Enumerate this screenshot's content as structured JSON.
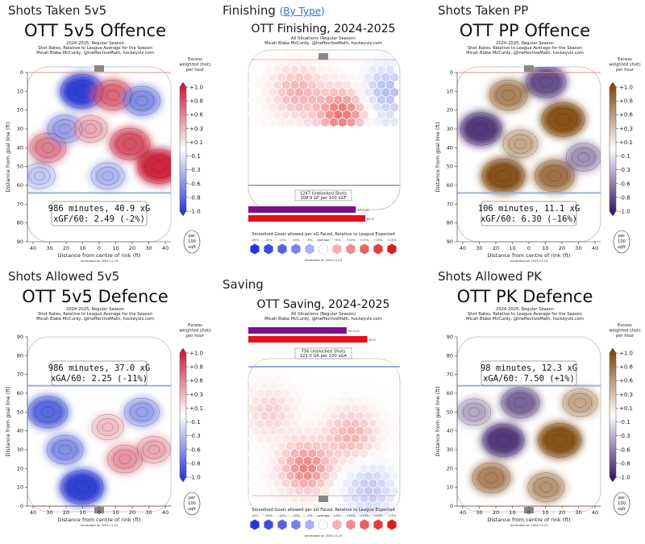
{
  "panels": [
    {
      "id": "off5v5",
      "kind": "rink",
      "orient": "up",
      "palette": "rb",
      "section_label": "Shots Taken 5v5",
      "title": "OTT 5v5 Offence",
      "sub1": "2024-2025, Regular Season",
      "sub2": "Shot Rates, Relative to League Average for the Season",
      "sub3": "Micah Blake McCurdy, @IneffectiveMath, hockeyviz.com",
      "stat1": "986 minutes, 40.9 xG",
      "stat2": "xGF/60: 2.49 (-2%)",
      "ylabel": "Distance from goal line (ft)",
      "xlabel": "Distance from centre of rink (ft)",
      "yticks": [
        "0",
        "10",
        "20",
        "30",
        "40",
        "50",
        "60",
        "70",
        "80",
        "90"
      ],
      "xticks": [
        "40",
        "30",
        "20",
        "10",
        "0",
        "10",
        "20",
        "30",
        "40"
      ],
      "cb_title": [
        "Excess",
        "weighted shots",
        "per hour"
      ],
      "cb_ticks": [
        "+1.0",
        "+0.8",
        "+0.6",
        "+0.3",
        "+0.1",
        "-0.1",
        "-0.3",
        "-0.6",
        "-0.8",
        "-1.0"
      ],
      "unit": [
        "per",
        "100",
        "sqft"
      ],
      "generated": "Generated on 2024-11-23"
    },
    {
      "id": "fin",
      "kind": "hex",
      "orient": "up",
      "section_label": "Finishing",
      "section_link": "By Type",
      "title": "OTT Finishing, 2024-2025",
      "sub1": "All Situations (Regular Season)",
      "sub2": "Micah Blake McCurdy, @IneffectiveMath, hockeyviz.com",
      "box1": "1247 Unblocked Shots",
      "box2": "108.9 GF per 100 xGF",
      "bar1_label": "55.1 xG",
      "bar2_label": "60 G",
      "bar_values": [
        55.1,
        60
      ],
      "legend_title": "Smoothed Goals allowed per xG Faced, Relative to League Expected",
      "legend_ticks": [
        "-25%",
        "-20%",
        "-15%",
        "-10%",
        "-5%",
        "average",
        "+5%",
        "+10%",
        "+15%",
        "+20%",
        "+25%"
      ],
      "generated": "Generated on 2024-11-23"
    },
    {
      "id": "pp",
      "kind": "rink",
      "orient": "up",
      "palette": "po",
      "section_label": "Shots Taken PP",
      "title": "OTT PP Offence",
      "sub1": "2024-2025, Regular Season",
      "sub2": "Shot Rates, Relative to League Average for the Season",
      "sub3": "Micah Blake McCurdy, @IneffectiveMath, hockeyviz.com",
      "stat1": "106 minutes, 11.1 xG",
      "stat2": "xGF/60: 6.30 (-16%)",
      "ylabel": "Distance from goal line (ft)",
      "xlabel": "Distance from centre of rink (ft)",
      "yticks": [
        "0",
        "10",
        "20",
        "30",
        "40",
        "50",
        "60",
        "70",
        "80",
        "90"
      ],
      "xticks": [
        "40",
        "30",
        "20",
        "10",
        "0",
        "10",
        "20",
        "30",
        "40"
      ],
      "cb_title": [
        "Excess",
        "weighted shots",
        "per hour"
      ],
      "cb_ticks": [
        "+1.0",
        "+0.8",
        "+0.6",
        "+0.3",
        "+0.1",
        "-0.1",
        "-0.3",
        "-0.6",
        "-0.8",
        "-1.0"
      ],
      "unit": [
        "per",
        "100",
        "sqft"
      ],
      "generated": "Generated on 2024-11-23"
    },
    {
      "id": "def5v5",
      "kind": "rink",
      "orient": "down",
      "palette": "rb",
      "section_label": "Shots Allowed 5v5",
      "title": "OTT 5v5 Defence",
      "sub1": "2024-2025, Regular Season",
      "sub2": "Shot Rates, Relative to League Average for the Season",
      "sub3": "Micah Blake McCurdy, @IneffectiveMath, hockeyviz.com",
      "stat1": "986 minutes, 37.0 xG",
      "stat2": "xGA/60: 2.25 (-11%)",
      "ylabel": "Distance from goal line (ft)",
      "xlabel": "Distance from centre of rink (ft)",
      "yticks": [
        "90",
        "80",
        "70",
        "60",
        "50",
        "40",
        "30",
        "20",
        "10",
        "0"
      ],
      "xticks": [
        "40",
        "30",
        "20",
        "10",
        "0",
        "10",
        "20",
        "30",
        "40"
      ],
      "cb_title": [
        "Excess",
        "weighted shots",
        "per hour"
      ],
      "cb_ticks": [
        "+1.0",
        "+0.8",
        "+0.6",
        "+0.3",
        "+0.1",
        "-0.1",
        "-0.3",
        "-0.6",
        "-0.8",
        "-1.0"
      ],
      "unit": [
        "per",
        "100",
        "sqft"
      ],
      "generated": "Generated on 2024-11-23"
    },
    {
      "id": "sav",
      "kind": "hex",
      "orient": "down",
      "section_label": "Saving",
      "title": "OTT Saving, 2024-2025",
      "sub1": "All Situations (Regular Season)",
      "sub2": "Micah Blake McCurdy, @IneffectiveMath, hockeyviz.com",
      "box1": "756 Unblocked Shots",
      "box2": "121.0 GA per 100 xGA",
      "bar1_label": "50.4 xG",
      "bar2_label": "61 G",
      "bar_values": [
        50.4,
        61
      ],
      "legend_title": "Smoothed Goals allowed per xG Faced, Relative to League Expected",
      "legend_ticks": [
        "-25%",
        "-20%",
        "-15%",
        "-10%",
        "-5%",
        "average",
        "+5%",
        "+10%",
        "+15%",
        "+20%",
        "+25%"
      ],
      "generated": "Generated on 2024-11-23"
    },
    {
      "id": "pk",
      "kind": "rink",
      "orient": "down",
      "palette": "po",
      "section_label": "Shots Allowed PK",
      "title": "OTT PK Defence",
      "sub1": "2024-2025, Regular Season",
      "sub2": "Shot Rates, Relative to League Average for the Season",
      "sub3": "Micah Blake McCurdy, @IneffectiveMath, hockeyviz.com",
      "stat1": "98 minutes, 12.3 xG",
      "stat2": "xGA/60: 7.50 (+1%)",
      "ylabel": "Distance from goal line (ft)",
      "xlabel": "Distance from centre of rink (ft)",
      "yticks": [
        "90",
        "80",
        "70",
        "60",
        "50",
        "40",
        "30",
        "20",
        "10",
        "0"
      ],
      "xticks": [
        "40",
        "30",
        "20",
        "10",
        "0",
        "10",
        "20",
        "30",
        "40"
      ],
      "cb_title": [
        "Excess",
        "weighted shots",
        "per hour"
      ],
      "cb_ticks": [
        "+1.0",
        "+0.8",
        "+0.6",
        "+0.3",
        "+0.1",
        "-0.1",
        "-0.3",
        "-0.6",
        "-0.8",
        "-1.0"
      ],
      "unit": [
        "per",
        "100",
        "sqft"
      ],
      "generated": "Generated on 2024-11-23"
    }
  ],
  "chart_data": [
    {
      "type": "heatmap",
      "title": "OTT 5v5 Offence",
      "xlabel": "Distance from centre of rink (ft)",
      "ylabel": "Distance from goal line (ft)",
      "xlim": [
        -42,
        42
      ],
      "ylim": [
        0,
        90
      ],
      "colorbar_range": [
        -1.0,
        1.0
      ],
      "colors": {
        "positive": "#c8102e",
        "negative": "#1a2fd0"
      },
      "blobs": [
        {
          "x": -30,
          "y": 40,
          "v": 0.6
        },
        {
          "x": -10,
          "y": 10,
          "v": -1.0
        },
        {
          "x": 8,
          "y": 12,
          "v": 0.7
        },
        {
          "x": 35,
          "y": 50,
          "v": 1.0
        },
        {
          "x": 18,
          "y": 38,
          "v": 0.8
        },
        {
          "x": -20,
          "y": 30,
          "v": -0.5
        },
        {
          "x": 25,
          "y": 15,
          "v": -0.6
        },
        {
          "x": 5,
          "y": 55,
          "v": -0.4
        },
        {
          "x": -35,
          "y": 55,
          "v": -0.3
        },
        {
          "x": -5,
          "y": 30,
          "v": 0.4
        }
      ]
    },
    {
      "type": "heatmap",
      "title": "OTT Finishing, 2024-2025",
      "legend": "Smoothed Goals allowed per xG Faced, Relative to League Expected",
      "legend_range": [
        -25,
        25
      ],
      "colors": {
        "positive": "#dd1c1c",
        "negative": "#2436d6"
      },
      "blobs": [
        {
          "x": 10,
          "y": 25,
          "v": 18
        },
        {
          "x": -15,
          "y": 15,
          "v": 10
        },
        {
          "x": -25,
          "y": 45,
          "v": 6
        },
        {
          "x": 30,
          "y": 40,
          "v": -8
        },
        {
          "x": 0,
          "y": 55,
          "v": -6
        },
        {
          "x": 35,
          "y": 15,
          "v": -10
        }
      ],
      "bars": [
        {
          "label": "55.1 xG",
          "value": 55.1
        },
        {
          "label": "60 G",
          "value": 60
        }
      ]
    },
    {
      "type": "heatmap",
      "title": "OTT PP Offence",
      "xlabel": "Distance from centre of rink (ft)",
      "ylabel": "Distance from goal line (ft)",
      "xlim": [
        -42,
        42
      ],
      "ylim": [
        0,
        90
      ],
      "colorbar_range": [
        -1.0,
        1.0
      ],
      "colors": {
        "positive": "#7a3d00",
        "negative": "#2d0a5c"
      },
      "blobs": [
        {
          "x": 20,
          "y": 25,
          "v": 1.0
        },
        {
          "x": -28,
          "y": 30,
          "v": -0.9
        },
        {
          "x": -12,
          "y": 12,
          "v": 0.7
        },
        {
          "x": 10,
          "y": 5,
          "v": -0.8
        },
        {
          "x": -15,
          "y": 55,
          "v": 1.0
        },
        {
          "x": 15,
          "y": 55,
          "v": 0.8
        },
        {
          "x": 32,
          "y": 45,
          "v": -0.5
        },
        {
          "x": -5,
          "y": 38,
          "v": 0.5
        }
      ]
    },
    {
      "type": "heatmap",
      "title": "OTT 5v5 Defence",
      "xlabel": "Distance from centre of rink (ft)",
      "ylabel": "Distance from goal line (ft)",
      "xlim": [
        -42,
        42
      ],
      "ylim": [
        0,
        90
      ],
      "colorbar_range": [
        -1.0,
        1.0
      ],
      "colors": {
        "positive": "#c8102e",
        "negative": "#1a2fd0"
      },
      "blobs": [
        {
          "x": -30,
          "y": 50,
          "v": -0.8
        },
        {
          "x": -10,
          "y": 10,
          "v": -1.0
        },
        {
          "x": 15,
          "y": 25,
          "v": 0.5
        },
        {
          "x": 25,
          "y": 50,
          "v": -0.5
        },
        {
          "x": -20,
          "y": 30,
          "v": -0.6
        },
        {
          "x": 5,
          "y": 42,
          "v": 0.3
        },
        {
          "x": 32,
          "y": 30,
          "v": 0.4
        }
      ]
    },
    {
      "type": "heatmap",
      "title": "OTT Saving, 2024-2025",
      "legend": "Smoothed Goals allowed per xG Faced, Relative to League Expected",
      "legend_range": [
        -25,
        25
      ],
      "colors": {
        "positive": "#dd1c1c",
        "negative": "#2436d6"
      },
      "blobs": [
        {
          "x": -10,
          "y": 20,
          "v": 16
        },
        {
          "x": 15,
          "y": 35,
          "v": 10
        },
        {
          "x": 25,
          "y": 10,
          "v": -8
        },
        {
          "x": -30,
          "y": 45,
          "v": 6
        }
      ],
      "bars": [
        {
          "label": "50.4 xG",
          "value": 50.4
        },
        {
          "label": "61 G",
          "value": 61
        }
      ]
    },
    {
      "type": "heatmap",
      "title": "OTT PK Defence",
      "xlabel": "Distance from centre of rink (ft)",
      "ylabel": "Distance from goal line (ft)",
      "xlim": [
        -42,
        42
      ],
      "ylim": [
        0,
        90
      ],
      "colorbar_range": [
        -1.0,
        1.0
      ],
      "colors": {
        "positive": "#7a3d00",
        "negative": "#2d0a5c"
      },
      "blobs": [
        {
          "x": 18,
          "y": 35,
          "v": 1.0
        },
        {
          "x": -15,
          "y": 35,
          "v": -0.9
        },
        {
          "x": -5,
          "y": 55,
          "v": -0.7
        },
        {
          "x": -22,
          "y": 15,
          "v": 0.7
        },
        {
          "x": 10,
          "y": 10,
          "v": 0.6
        },
        {
          "x": 30,
          "y": 55,
          "v": 0.5
        },
        {
          "x": -32,
          "y": 50,
          "v": -0.4
        }
      ]
    }
  ]
}
